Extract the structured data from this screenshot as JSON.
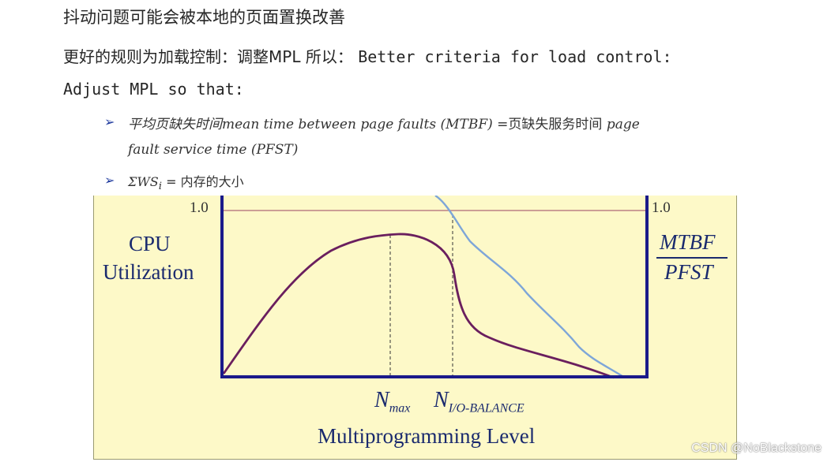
{
  "heading": "抖动问题可能会被本地的页面置换改善",
  "rule_line": {
    "prefix": "更好的规则为加载控制：调整MPL 所以：",
    "english": "Better criteria for load control:"
  },
  "adjust_line": "Adjust MPL so that:",
  "bullets": [
    {
      "part1_cn": "平均页缺失时间",
      "part1_en": "mean time between page faults (MTBF)",
      "eq": " =页缺失服务时间 ",
      "part2_en": "page",
      "part2_line2": "fault service time (PFST)"
    },
    {
      "sigma": "ΣWS",
      "subscript": "i",
      "rest": " = 内存的大小"
    }
  ],
  "figure": {
    "left_tick": "1.0",
    "right_tick": "1.0",
    "left_label_line1": "CPU",
    "left_label_line2": "Utilization",
    "right_label_top": "MTBF",
    "right_label_bottom": "PFST",
    "nmax": "N",
    "nmax_sub": "max",
    "nio": "N",
    "nio_sub": "I/O-BALANCE",
    "x_label": "Multiprogramming Level",
    "colors": {
      "axes": "#1a1a8a",
      "cpu_curve": "#6a1f5e",
      "mtbf_curve": "#7ea6d8",
      "reference_line": "#b06a78"
    }
  },
  "watermark": "CSDN @NoBlackstone"
}
